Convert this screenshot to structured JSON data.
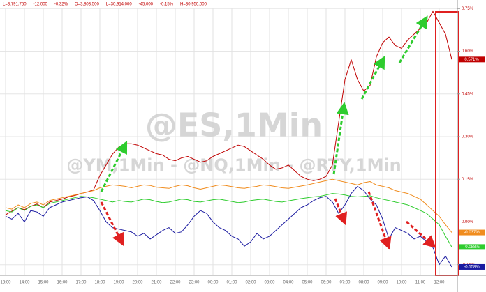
{
  "chart_data": {
    "type": "line",
    "title": "@ES,1Min",
    "subtitle": "@YM,1Min - @NQ,1Min - @RTY,1Min",
    "header_items": [
      {
        "text": "L=3,791.750",
        "color": "#c00000"
      },
      {
        "text": "-12.000",
        "color": "#c00000"
      },
      {
        "text": "-0.32%",
        "color": "#c00000"
      },
      {
        "text": "O=3,803.500",
        "color": "#c00000"
      },
      {
        "text": "L=30,914.000",
        "color": "#c00000"
      },
      {
        "text": "-45.000",
        "color": "#c00000"
      },
      {
        "text": "-0.15%",
        "color": "#c00000"
      },
      {
        "text": "H=30,950.000",
        "color": "#c00000"
      }
    ],
    "categories": [
      "13:00",
      null,
      null,
      "14:00",
      null,
      null,
      "15:00",
      null,
      null,
      "16:00",
      null,
      null,
      "17:00",
      null,
      null,
      "18:00",
      null,
      null,
      "19:00",
      null,
      null,
      "20:00",
      null,
      null,
      "21:00",
      null,
      null,
      "22:00",
      null,
      null,
      "23:00",
      null,
      null,
      "00:00",
      null,
      null,
      "01:00",
      null,
      null,
      "02:00",
      null,
      null,
      "03:00",
      null,
      null,
      "04:00",
      null,
      null,
      "05:00",
      null,
      null,
      "06:00",
      null,
      null,
      "07:00",
      null,
      null,
      "08:00",
      null,
      null,
      "09:00",
      null,
      null,
      "10:00",
      null,
      null,
      "11:00",
      null,
      null,
      "12:00",
      null,
      null
    ],
    "ylim": [
      -0.1875,
      0.78
    ],
    "yticks": [
      {
        "value": 0.75,
        "label": "0.75%"
      },
      {
        "value": 0.6,
        "label": "0.60%"
      },
      {
        "value": 0.45,
        "label": "0.45%"
      },
      {
        "value": 0.3,
        "label": "0.30%"
      },
      {
        "value": 0.15,
        "label": "0.15%"
      },
      {
        "value": 0,
        "label": "0.00%"
      },
      {
        "value": -0.15,
        "label": "-0.15%"
      }
    ],
    "grid": true,
    "series": [
      {
        "name": "@ES",
        "color": "#c00000",
        "last_value_label": "0.571%",
        "values": [
          0.025,
          0.038,
          0.05,
          0.043,
          0.055,
          0.063,
          0.05,
          0.07,
          0.075,
          0.08,
          0.088,
          0.093,
          0.1,
          0.105,
          0.113,
          0.163,
          0.2,
          0.238,
          0.263,
          0.275,
          0.275,
          0.27,
          0.26,
          0.25,
          0.24,
          0.235,
          0.22,
          0.215,
          0.225,
          0.23,
          0.22,
          0.21,
          0.215,
          0.23,
          0.24,
          0.25,
          0.26,
          0.27,
          0.265,
          0.25,
          0.235,
          0.22,
          0.2,
          0.185,
          0.19,
          0.2,
          0.18,
          0.16,
          0.15,
          0.145,
          0.15,
          0.16,
          0.2,
          0.35,
          0.5,
          0.57,
          0.5,
          0.46,
          0.48,
          0.58,
          0.63,
          0.65,
          0.62,
          0.61,
          0.64,
          0.66,
          0.68,
          0.7,
          0.74,
          0.7,
          0.66,
          0.571
        ]
      },
      {
        "name": "@NQ",
        "color": "#f08c1e",
        "last_value_label": "-0.037%",
        "values": [
          0.05,
          0.045,
          0.06,
          0.05,
          0.065,
          0.07,
          0.06,
          0.075,
          0.08,
          0.085,
          0.09,
          0.095,
          0.1,
          0.105,
          0.11,
          0.12,
          0.125,
          0.13,
          0.128,
          0.125,
          0.12,
          0.125,
          0.13,
          0.128,
          0.122,
          0.12,
          0.118,
          0.125,
          0.13,
          0.127,
          0.12,
          0.115,
          0.12,
          0.125,
          0.13,
          0.128,
          0.124,
          0.12,
          0.118,
          0.122,
          0.125,
          0.13,
          0.128,
          0.124,
          0.12,
          0.118,
          0.122,
          0.126,
          0.13,
          0.135,
          0.14,
          0.145,
          0.15,
          0.145,
          0.14,
          0.135,
          0.13,
          0.138,
          0.142,
          0.13,
          0.125,
          0.12,
          0.11,
          0.105,
          0.1,
          0.09,
          0.08,
          0.06,
          0.04,
          0.02,
          -0.01,
          -0.037
        ]
      },
      {
        "name": "@YM",
        "color": "#2ecc2e",
        "last_value_label": "-0.088%",
        "values": [
          0.04,
          0.035,
          0.05,
          0.04,
          0.055,
          0.06,
          0.05,
          0.065,
          0.07,
          0.075,
          0.08,
          0.085,
          0.09,
          0.088,
          0.085,
          0.08,
          0.075,
          0.07,
          0.075,
          0.072,
          0.07,
          0.075,
          0.08,
          0.078,
          0.072,
          0.068,
          0.07,
          0.075,
          0.08,
          0.078,
          0.072,
          0.07,
          0.074,
          0.078,
          0.08,
          0.076,
          0.072,
          0.068,
          0.07,
          0.075,
          0.078,
          0.08,
          0.076,
          0.072,
          0.07,
          0.074,
          0.078,
          0.082,
          0.085,
          0.088,
          0.09,
          0.095,
          0.1,
          0.098,
          0.095,
          0.09,
          0.088,
          0.09,
          0.092,
          0.085,
          0.08,
          0.075,
          0.07,
          0.065,
          0.06,
          0.05,
          0.04,
          0.03,
          0.01,
          -0.01,
          -0.05,
          -0.088
        ]
      },
      {
        "name": "@RTY",
        "color": "#1a1aa0",
        "last_value_label": "-0.158%",
        "values": [
          0.02,
          0.01,
          0.03,
          0.0,
          0.04,
          0.035,
          0.02,
          0.05,
          0.06,
          0.07,
          0.075,
          0.08,
          0.085,
          0.088,
          0.075,
          0.04,
          0.0,
          -0.02,
          -0.025,
          -0.03,
          -0.035,
          -0.05,
          -0.04,
          -0.06,
          -0.045,
          -0.03,
          -0.02,
          -0.04,
          -0.035,
          -0.01,
          0.02,
          0.04,
          0.03,
          0.0,
          -0.02,
          -0.03,
          -0.05,
          -0.06,
          -0.085,
          -0.07,
          -0.04,
          -0.06,
          -0.05,
          -0.03,
          -0.01,
          0.01,
          0.03,
          0.05,
          0.06,
          0.075,
          0.085,
          0.09,
          0.07,
          0.03,
          0.06,
          0.1,
          0.125,
          0.11,
          0.08,
          0.06,
          0.01,
          -0.06,
          -0.02,
          -0.03,
          -0.04,
          -0.06,
          -0.05,
          -0.07,
          -0.09,
          -0.15,
          -0.12,
          -0.158
        ]
      }
    ]
  }
}
